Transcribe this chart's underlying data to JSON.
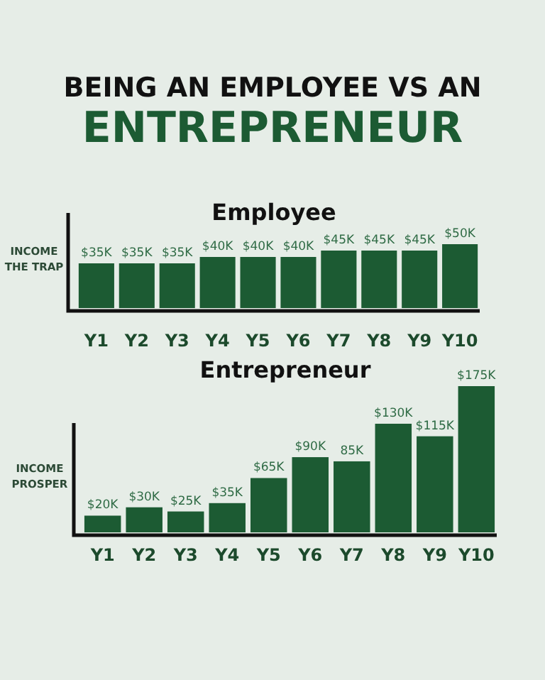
{
  "chart_data": [
    {
      "type": "bar",
      "title": "BEING AN EMPLOYEE VS AN ENTREPRENEUR",
      "subtitle": "Employee",
      "ylabel": "INCOME THE TRAP",
      "categories": [
        "Y1",
        "Y2",
        "Y3",
        "Y4",
        "Y5",
        "Y6",
        "Y7",
        "Y8",
        "Y9",
        "Y10"
      ],
      "values": [
        35,
        35,
        35,
        40,
        40,
        40,
        45,
        45,
        45,
        50
      ],
      "value_labels": [
        "$35K",
        "$35K",
        "$35K",
        "$40K",
        "$40K",
        "$40K",
        "$45K",
        "$45K",
        "$45K",
        "$50K"
      ],
      "color": "#1c5b33",
      "tick_labels": "x"
    },
    {
      "type": "bar",
      "subtitle": "Entrepreneur",
      "ylabel": "INCOME PROSPER",
      "categories": [
        "Y1",
        "Y2",
        "Y3",
        "Y4",
        "Y5",
        "Y6",
        "Y7",
        "Y8",
        "Y9",
        "Y10"
      ],
      "values": [
        20,
        30,
        25,
        35,
        65,
        90,
        85,
        130,
        115,
        175
      ],
      "value_labels": [
        "$20K",
        "$30K",
        "$25K",
        "$35K",
        "$65K",
        "$90K",
        "85K",
        "$130K",
        "$115K",
        "$175K"
      ],
      "color": "#1c5b33",
      "tick_labels": "x"
    }
  ]
}
